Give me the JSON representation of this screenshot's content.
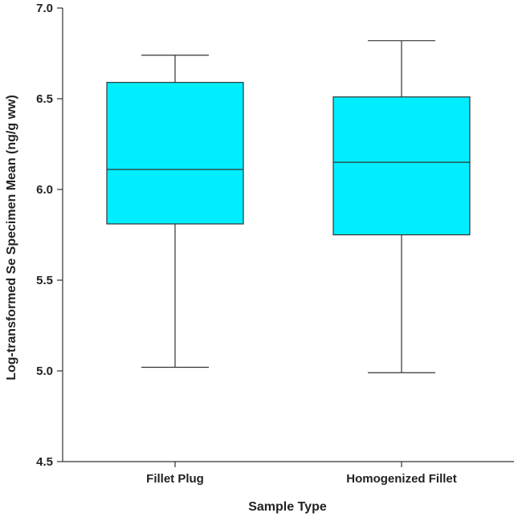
{
  "chart_data": {
    "type": "box",
    "xlabel": "Sample Type",
    "ylabel": "Log-transformed Se Specimen Mean (ng/g ww)",
    "ylim": [
      4.5,
      7.0
    ],
    "yticks": [
      4.5,
      5.0,
      5.5,
      6.0,
      6.5,
      7.0
    ],
    "ytick_labels": [
      "4.5",
      "5.0",
      "5.5",
      "6.0",
      "6.5",
      "7.0"
    ],
    "grid": false,
    "box_color": "#00eeff",
    "categories": [
      "Fillet Plug",
      "Homogenized Fillet"
    ],
    "boxes": [
      {
        "category": "Fillet Plug",
        "whisker_low": 5.02,
        "q1": 5.81,
        "median": 6.11,
        "q3": 6.59,
        "whisker_high": 6.74
      },
      {
        "category": "Homogenized Fillet",
        "whisker_low": 4.99,
        "q1": 5.75,
        "median": 6.15,
        "q3": 6.51,
        "whisker_high": 6.82
      }
    ]
  }
}
